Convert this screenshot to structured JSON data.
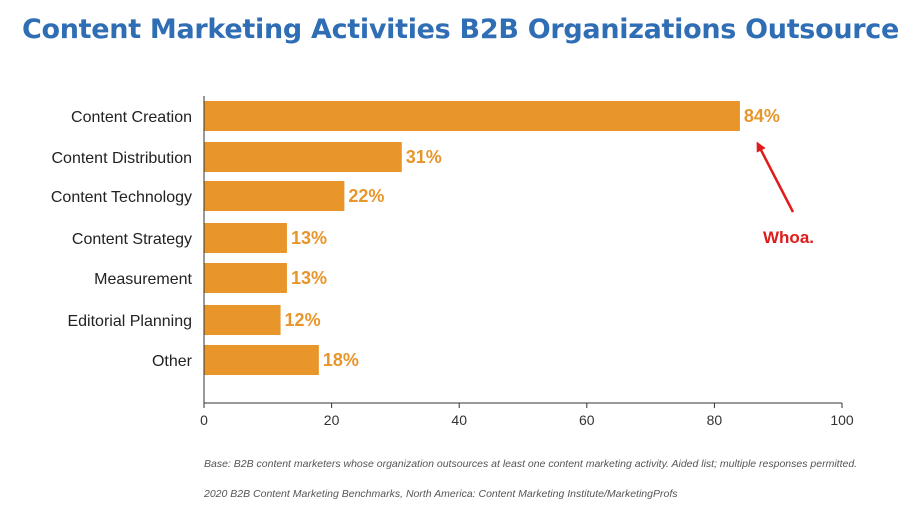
{
  "chart_data": {
    "type": "bar",
    "orientation": "horizontal",
    "title": "Content Marketing Activities B2B Organizations Outsource",
    "categories": [
      "Content Creation",
      "Content Distribution",
      "Content Technology",
      "Content Strategy",
      "Measurement",
      "Editorial Planning",
      "Other"
    ],
    "values": [
      84,
      31,
      22,
      13,
      13,
      12,
      18
    ],
    "value_labels": [
      "84%",
      "31%",
      "22%",
      "13%",
      "13%",
      "12%",
      "18%"
    ],
    "xlim": [
      0,
      100
    ],
    "xticks": [
      0,
      20,
      40,
      60,
      80,
      100
    ],
    "xlabel": "",
    "ylabel": "",
    "grid": false,
    "bar_color": "#e8962a",
    "annotation": {
      "text": "Whoa.",
      "target": "Content Creation",
      "color": "#e01b1b"
    }
  },
  "footnotes": {
    "base": "Base: B2B content marketers whose organization outsources at least one content marketing activity. Aided list; multiple responses permitted.",
    "source": "2020 B2B Content Marketing Benchmarks, North America: Content Marketing Institute/MarketingProfs"
  }
}
